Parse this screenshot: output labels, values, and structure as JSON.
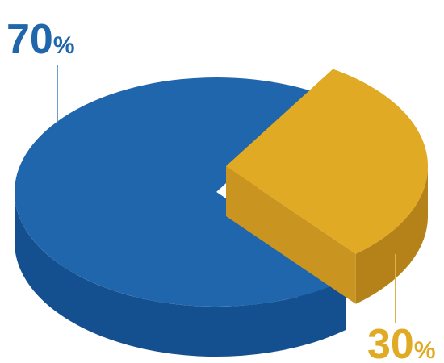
{
  "chart_data": {
    "type": "pie",
    "style": "3d-exploded",
    "categories": [
      "",
      ""
    ],
    "values": [
      70,
      30
    ],
    "data_labels": [
      "70%",
      "30%"
    ],
    "colors": [
      "#1f66ad",
      "#e0aa24"
    ],
    "title": "",
    "legend": "none"
  },
  "labels": {
    "big": {
      "number": "70",
      "sign": "%"
    },
    "small": {
      "number": "30",
      "sign": "%"
    }
  },
  "colors": {
    "blue_top": "#1f66ad",
    "blue_side": "#14508f",
    "gold_top": "#e0aa24",
    "gold_side": "#b5821a",
    "leader_blue": "#6f9fd0",
    "leader_gold": "#d8b24a"
  }
}
